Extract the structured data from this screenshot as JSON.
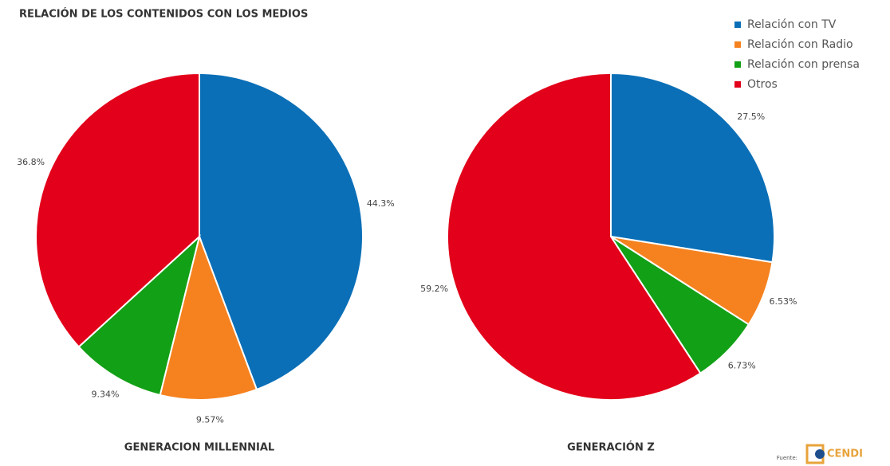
{
  "title": "RELACIÓN DE LOS CONTENIDOS CON LOS MEDIOS",
  "chart_data": [
    {
      "type": "pie",
      "title": "GENERACION MILLENNIAL",
      "categories": [
        "Relación con TV",
        "Relación con Radio",
        "Relación con prensa",
        "Otros"
      ],
      "values": [
        44.3,
        9.57,
        9.34,
        36.8
      ],
      "value_labels": [
        "44.3%",
        "9.57%",
        "9.34%",
        "36.8%"
      ],
      "colors": [
        "#0a6fb7",
        "#f5821f",
        "#12a016",
        "#e2001a"
      ]
    },
    {
      "type": "pie",
      "title": "GENERACIÓN Z",
      "categories": [
        "Relación con TV",
        "Relación con Radio",
        "Relación con prensa",
        "Otros"
      ],
      "values": [
        27.5,
        6.53,
        6.73,
        59.2
      ],
      "value_labels": [
        "27.5%",
        "6.53%",
        "6.73%",
        "59.2%"
      ],
      "colors": [
        "#0a6fb7",
        "#f5821f",
        "#12a016",
        "#e2001a"
      ]
    }
  ],
  "source": {
    "label": "Fuente:",
    "logo": "CENDI"
  }
}
